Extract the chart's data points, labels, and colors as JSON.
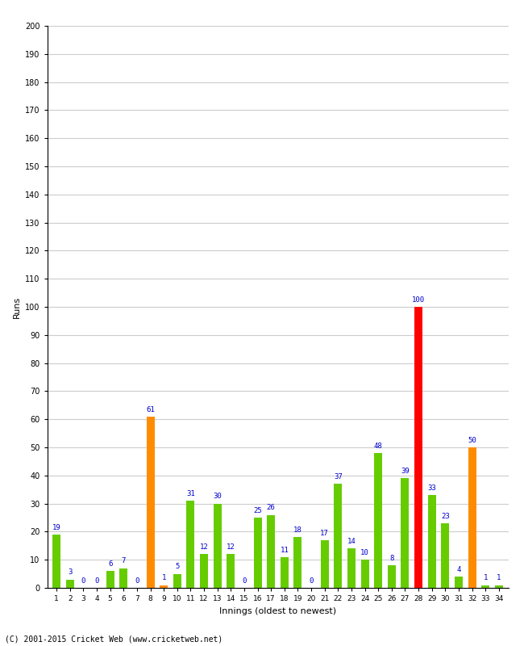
{
  "innings": [
    1,
    2,
    3,
    4,
    5,
    6,
    7,
    8,
    9,
    10,
    11,
    12,
    13,
    14,
    15,
    16,
    17,
    18,
    19,
    20,
    21,
    22,
    23,
    24,
    25,
    26,
    27,
    28,
    29,
    30,
    31,
    32,
    33,
    34
  ],
  "runs": [
    19,
    3,
    0,
    0,
    6,
    7,
    0,
    61,
    1,
    5,
    31,
    12,
    30,
    12,
    0,
    25,
    26,
    11,
    18,
    0,
    17,
    37,
    14,
    10,
    48,
    8,
    39,
    100,
    33,
    23,
    4,
    50,
    1,
    1
  ],
  "colors": [
    "#66cc00",
    "#66cc00",
    "#66cc00",
    "#66cc00",
    "#66cc00",
    "#66cc00",
    "#66cc00",
    "#ff8c00",
    "#ff8c00",
    "#66cc00",
    "#66cc00",
    "#66cc00",
    "#66cc00",
    "#66cc00",
    "#66cc00",
    "#66cc00",
    "#66cc00",
    "#66cc00",
    "#66cc00",
    "#66cc00",
    "#66cc00",
    "#66cc00",
    "#66cc00",
    "#66cc00",
    "#66cc00",
    "#66cc00",
    "#66cc00",
    "#ff0000",
    "#66cc00",
    "#66cc00",
    "#66cc00",
    "#ff8c00",
    "#66cc00",
    "#66cc00"
  ],
  "xlabel": "Innings (oldest to newest)",
  "ylabel": "Runs",
  "ylim": [
    0,
    200
  ],
  "yticks": [
    0,
    10,
    20,
    30,
    40,
    50,
    60,
    70,
    80,
    90,
    100,
    110,
    120,
    130,
    140,
    150,
    160,
    170,
    180,
    190,
    200
  ],
  "background_color": "#ffffff",
  "grid_color": "#cccccc",
  "label_color": "#0000cc",
  "footer": "(C) 2001-2015 Cricket Web (www.cricketweb.net)"
}
